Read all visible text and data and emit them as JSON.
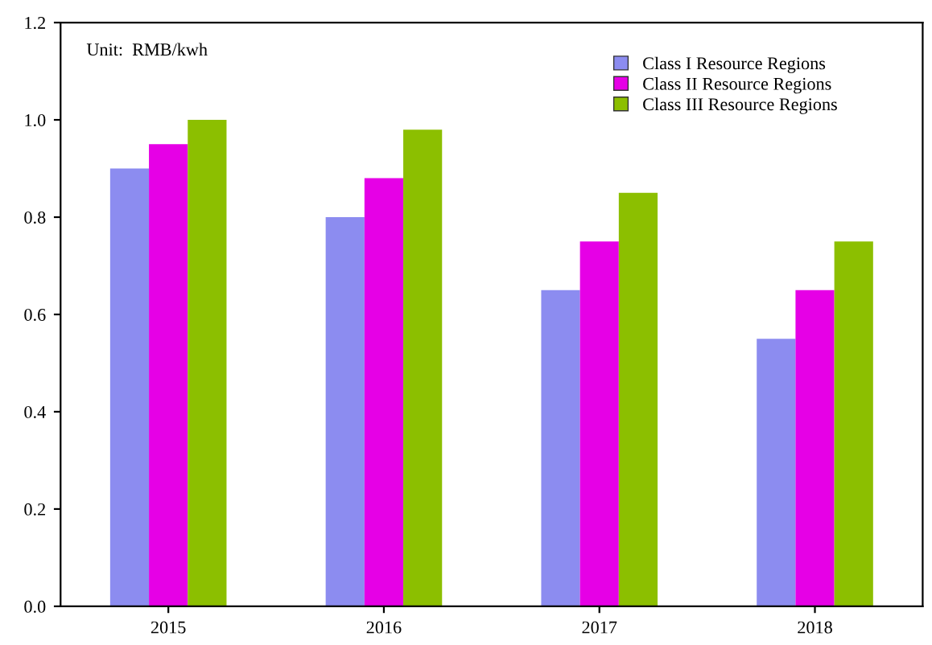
{
  "chart_data": {
    "type": "bar",
    "categories": [
      "2015",
      "2016",
      "2017",
      "2018"
    ],
    "series": [
      {
        "name": "Class I Resource Regions",
        "color": "#8c8cf0",
        "values": [
          0.9,
          0.8,
          0.65,
          0.55
        ]
      },
      {
        "name": "Class II Resource Regions",
        "color": "#e600e6",
        "values": [
          0.95,
          0.88,
          0.75,
          0.65
        ]
      },
      {
        "name": "Class III Resource Regions",
        "color": "#8cbf00",
        "values": [
          1.0,
          0.98,
          0.85,
          0.75
        ]
      }
    ],
    "ylim": [
      0,
      1.2
    ],
    "yticks": [
      {
        "value": 0,
        "label": "0.0"
      },
      {
        "value": 0.2,
        "label": "0.2"
      },
      {
        "value": 0.4,
        "label": "0.4"
      },
      {
        "value": 0.6,
        "label": "0.6"
      },
      {
        "value": 0.8,
        "label": "0.8"
      },
      {
        "value": 1.0,
        "label": "1.0"
      },
      {
        "value": 1.2,
        "label": "1.2"
      }
    ],
    "annotations": [
      "Unit:  RMB/kwh"
    ],
    "legend": "top right",
    "grid": false
  }
}
